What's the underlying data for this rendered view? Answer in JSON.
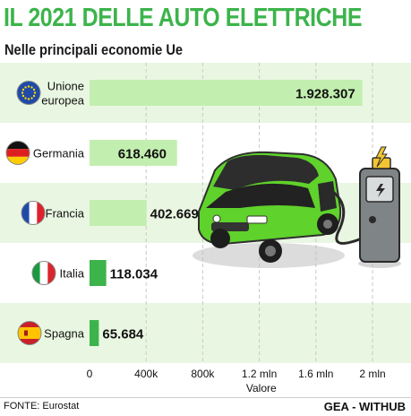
{
  "title": "IL 2021 DELLE AUTO ELETTRICHE",
  "subtitle": "Nelle principali economie Ue",
  "footer": {
    "source": "FONTE: Eurostat",
    "brand": "GEA - WITHUB"
  },
  "colors": {
    "accent": "#3cb44b",
    "bar": "#c2efb0",
    "band": "#e9f7e2"
  },
  "chart_data": {
    "type": "bar",
    "orientation": "horizontal",
    "categories": [
      "Unione europea",
      "Germania",
      "Francia",
      "Italia",
      "Spagna"
    ],
    "category_lines": [
      [
        "Unione",
        "europea"
      ],
      [
        "Germania"
      ],
      [
        "Francia"
      ],
      [
        "Italia"
      ],
      [
        "Spagna"
      ]
    ],
    "values": [
      1928307,
      618460,
      402669,
      118034,
      65684
    ],
    "value_labels": [
      "1.928.307",
      "618.460",
      "402.669",
      "118.034",
      "65.684"
    ],
    "flags": [
      "eu-flag-icon",
      "germany-flag-icon",
      "france-flag-icon",
      "italy-flag-icon",
      "spain-flag-icon"
    ],
    "xlabel": "Valore",
    "xlim": [
      0,
      2000000
    ],
    "xticks": [
      0,
      400000,
      800000,
      1200000,
      1600000,
      2000000
    ],
    "xtick_labels": [
      "0",
      "400k",
      "800k",
      "1.2 mln",
      "1.6 mln",
      "2 mln"
    ],
    "grid": true
  }
}
